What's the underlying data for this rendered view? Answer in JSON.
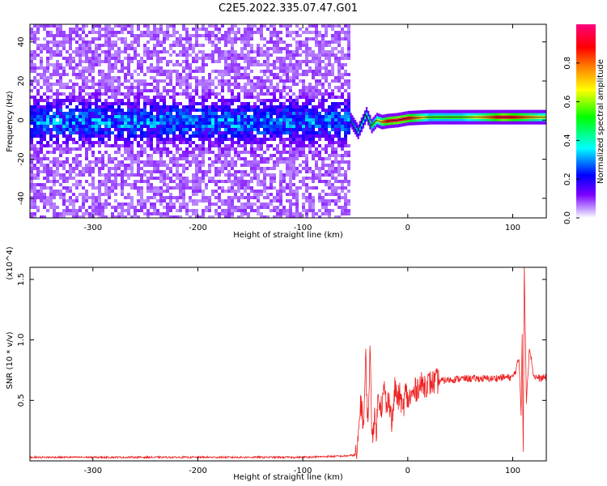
{
  "title": "C2E5.2022.335.07.47.G01",
  "colors": {
    "snr": "#ee2222"
  },
  "chart_data": [
    {
      "type": "heatmap",
      "title": "C2E5.2022.335.07.47.G01",
      "xlabel": "Height of straight line (km)",
      "ylabel": "Frequency (Hz)",
      "xlim": [
        -360,
        132
      ],
      "ylim": [
        -50,
        49
      ],
      "xticks": [
        -300,
        -200,
        -100,
        0,
        100
      ],
      "yticks": [
        -40,
        -20,
        0,
        20,
        40
      ],
      "colorbar": {
        "label": "Normalized spectral amplitude",
        "range": [
          0,
          1
        ],
        "ticks": [
          "0.0",
          "0.2",
          "0.4",
          "0.6",
          "0.8"
        ],
        "colormap": [
          "#ffffff",
          "#7b00ff",
          "#0000ff",
          "#00ffff",
          "#00ff00",
          "#ffff00",
          "#ff8000",
          "#ff0000",
          "#ff007f"
        ]
      },
      "ridge": [
        {
          "x": -55,
          "freq": 0,
          "amp": 0.25
        },
        {
          "x": -48,
          "freq": -6,
          "amp": 0.35
        },
        {
          "x": -40,
          "freq": 3,
          "amp": 0.4
        },
        {
          "x": -35,
          "freq": -3,
          "amp": 0.5
        },
        {
          "x": -30,
          "freq": 0,
          "amp": 0.6
        },
        {
          "x": -25,
          "freq": -1,
          "amp": 0.75
        },
        {
          "x": -20,
          "freq": -0.5,
          "amp": 0.9
        },
        {
          "x": -10,
          "freq": 0,
          "amp": 0.95
        },
        {
          "x": 0,
          "freq": 1,
          "amp": 0.9
        },
        {
          "x": 20,
          "freq": 1.5,
          "amp": 0.55
        },
        {
          "x": 50,
          "freq": 1.5,
          "amp": 0.55
        },
        {
          "x": 70,
          "freq": 1.5,
          "amp": 0.7
        },
        {
          "x": 90,
          "freq": 1.5,
          "amp": 0.95
        },
        {
          "x": 110,
          "freq": 1.5,
          "amp": 0.8
        },
        {
          "x": 132,
          "freq": 1.5,
          "amp": 0.6
        }
      ]
    },
    {
      "type": "line",
      "xlabel": "Height of straight line (km)",
      "ylabel": "SNR (10 * v/v)",
      "y_multiplier": "(x10^4)",
      "xlim": [
        -360,
        132
      ],
      "ylim": [
        0,
        1.6
      ],
      "xticks": [
        -300,
        -200,
        -100,
        0,
        100
      ],
      "yticks": [
        0.5,
        1.0,
        1.5
      ],
      "ytick_labels": [
        "0.5",
        "1.0",
        "1.5"
      ],
      "series": [
        {
          "x": [
            -360,
            -300,
            -200,
            -100,
            -60,
            -48,
            -45,
            -42,
            -40,
            -38,
            -36,
            -34,
            -32,
            -30,
            -28,
            -25,
            -22,
            -20,
            -18,
            -15,
            -12,
            -10,
            -7,
            -5,
            -2,
            0,
            5,
            10,
            20,
            30,
            40,
            50,
            60,
            70,
            80,
            90,
            100,
            103,
            106,
            108,
            109,
            110,
            111,
            113,
            116,
            120,
            126,
            132
          ],
          "y": [
            0.03,
            0.03,
            0.03,
            0.03,
            0.04,
            0.05,
            0.5,
            0.3,
            0.85,
            0.25,
            0.92,
            0.2,
            0.35,
            0.25,
            0.55,
            0.45,
            0.6,
            0.4,
            0.55,
            0.3,
            0.62,
            0.5,
            0.55,
            0.4,
            0.58,
            0.5,
            0.55,
            0.62,
            0.64,
            0.66,
            0.67,
            0.68,
            0.68,
            0.68,
            0.68,
            0.69,
            0.69,
            0.75,
            0.85,
            0.4,
            1.05,
            0.05,
            1.6,
            0.5,
            0.95,
            0.7,
            0.68,
            0.69
          ]
        }
      ]
    }
  ]
}
